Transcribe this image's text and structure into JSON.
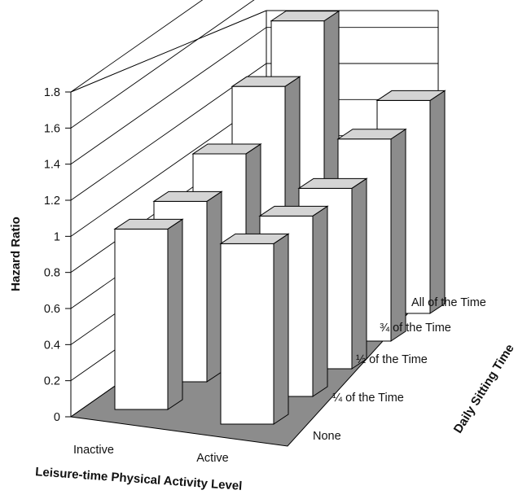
{
  "chart_data": {
    "type": "bar",
    "style": "3d-clustered",
    "ylabel": "Hazard Ratio",
    "xlabel": "Leisure-time Physical Activity Level",
    "zlabel": "Daily Sitting Time",
    "ylim": [
      0,
      1.8
    ],
    "yticks": [
      "0",
      "0.2",
      "0.4",
      "0.6",
      "0.8",
      "1",
      "1.2",
      "1.4",
      "1.6",
      "1.8"
    ],
    "categories": [
      "Inactive",
      "Active"
    ],
    "depth_categories": [
      "None",
      "¼ of the Time",
      "½ of the Time",
      "¾ of the Time",
      "All of the Time"
    ],
    "series": [
      {
        "name": "None",
        "values": [
          1.0,
          1.0
        ]
      },
      {
        "name": "¼ of the Time",
        "values": [
          1.0,
          1.0
        ]
      },
      {
        "name": "½ of the Time",
        "values": [
          1.11,
          1.0
        ]
      },
      {
        "name": "¾ of the Time",
        "values": [
          1.33,
          1.12
        ]
      },
      {
        "name": "All of the Time",
        "values": [
          1.54,
          1.18
        ]
      }
    ],
    "grid": true,
    "colors": {
      "bar_front": "#ffffff",
      "bar_top": "#d4d4d4",
      "bar_side": "#8c8c8c",
      "floor": "#8c8c8c"
    }
  }
}
